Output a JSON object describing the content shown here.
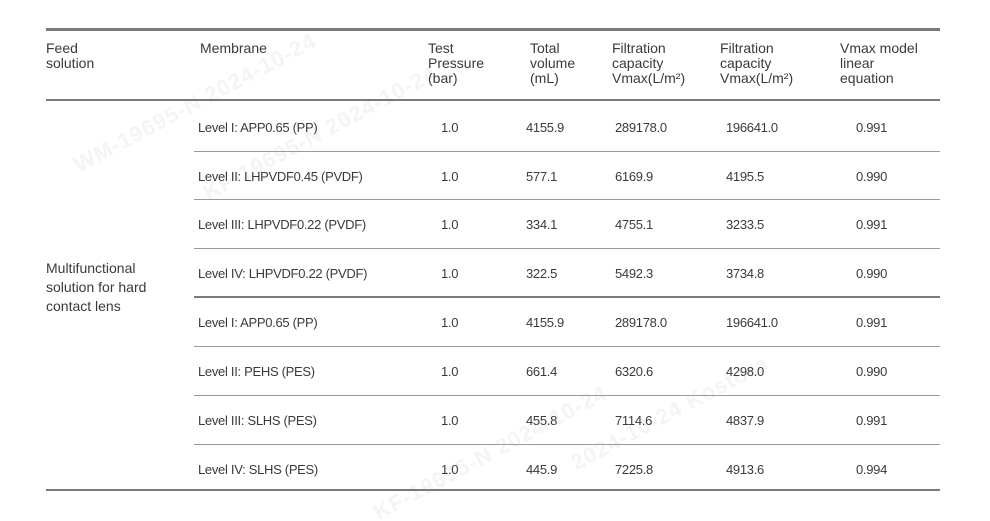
{
  "header": {
    "feed": "Feed\nsolution",
    "membrane": "Membrane",
    "pressure": "Test\nPressure\n(bar)",
    "volume": "Total\nvolume\n(mL)",
    "cap1": "Filtration\ncapacity\nVmax(L/m²)",
    "cap2": "Filtration\ncapacity\nVmax(L/m²)",
    "equation": "Vmax model\nlinear\nequation"
  },
  "feed_solution": "Multifunctional solution for hard contact lens",
  "rows": [
    {
      "membrane": "Level I:  APP0.65 (PP)",
      "pressure": "1.0",
      "volume": "4155.9",
      "cap1": "289178.0",
      "cap2": "196641.0",
      "equation": "0.991"
    },
    {
      "membrane": "Level II: LHPVDF0.45 (PVDF)",
      "pressure": "1.0",
      "volume": "577.1",
      "cap1": "6169.9",
      "cap2": "4195.5",
      "equation": "0.990"
    },
    {
      "membrane": "Level III: LHPVDF0.22 (PVDF)",
      "pressure": "1.0",
      "volume": "334.1",
      "cap1": "4755.1",
      "cap2": "3233.5",
      "equation": "0.991"
    },
    {
      "membrane": "Level IV: LHPVDF0.22 (PVDF)",
      "pressure": "1.0",
      "volume": "322.5",
      "cap1": "5492.3",
      "cap2": "3734.8",
      "equation": "0.990"
    },
    {
      "membrane": "Level I:  APP0.65 (PP)",
      "pressure": "1.0",
      "volume": "4155.9",
      "cap1": "289178.0",
      "cap2": "196641.0",
      "equation": "0.991"
    },
    {
      "membrane": "Level II: PEHS (PES)",
      "pressure": "1.0",
      "volume": "661.4",
      "cap1": "6320.6",
      "cap2": "4298.0",
      "equation": "0.990"
    },
    {
      "membrane": "Level III: SLHS (PES)",
      "pressure": "1.0",
      "volume": "455.8",
      "cap1": "7114.6",
      "cap2": "4837.9",
      "equation": "0.991"
    },
    {
      "membrane": "Level IV: SLHS (PES)",
      "pressure": "1.0",
      "volume": "445.9",
      "cap1": "7225.8",
      "cap2": "4913.6",
      "equation": "0.994"
    }
  ],
  "watermarks": [
    "WM-19695-N 2024-10-24",
    "KF-19695-N 2024-10-24",
    "2024-10-24 Kostora",
    "2024-10-24"
  ]
}
